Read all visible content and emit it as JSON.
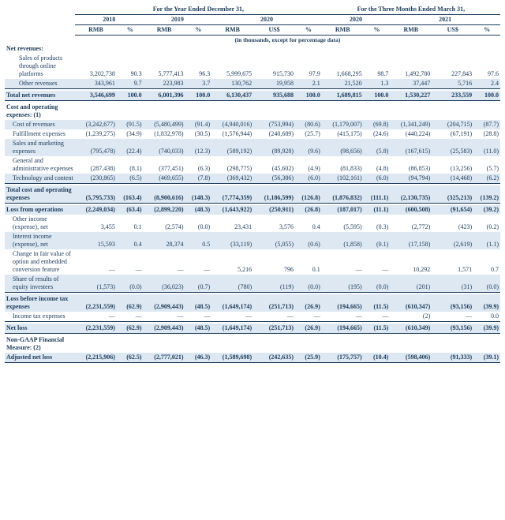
{
  "colors": {
    "fg": "#1a3a5a",
    "band": "#dde8f2",
    "bg": "#ffffff"
  },
  "headers": {
    "span_year": "For the Year Ended December 31,",
    "span_qtr": "For the Three Months Ended March 31,",
    "c1": "2018",
    "c2": "2019",
    "c3": "2020",
    "c4": "2020",
    "c5": "2021",
    "rmb": "RMB",
    "pct": "%",
    "uss": "US$",
    "units": "(in thousands, except for percentage data)"
  },
  "rows": [
    {
      "t": "h",
      "label": "Net revenues:"
    },
    {
      "t": "sub2",
      "label": "Sales of products through online platforms",
      "c": [
        "3,202,738",
        "90.3",
        "5,777,413",
        "96.3",
        "5,999,675",
        "915,730",
        "97.9",
        "1,668,295",
        "98.7",
        "1,492,780",
        "227,843",
        "97.6"
      ]
    },
    {
      "t": "sub2 band bb",
      "label": "Other revenues",
      "c": [
        "343,961",
        "9.7",
        "223,983",
        "3.7",
        "130,762",
        "19,958",
        "2.1",
        "21,520",
        "1.3",
        "37,447",
        "5,716",
        "2.4"
      ]
    },
    {
      "t": "sep"
    },
    {
      "t": "bold band bb",
      "label": "Total net revenues",
      "c": [
        "3,546,699",
        "100.0",
        "6,001,396",
        "100.0",
        "6,130,437",
        "935,688",
        "100.0",
        "1,689,815",
        "100.0",
        "1,530,227",
        "233,559",
        "100.0"
      ]
    },
    {
      "t": "sep"
    },
    {
      "t": "h",
      "label": "Cost and operating expenses: (1)"
    },
    {
      "t": "sub band",
      "label": "Cost of revenues",
      "c": [
        "(3,242,677)",
        "(91.5)",
        "(5,480,499)",
        "(91.4)",
        "(4,940,016)",
        "(753,994)",
        "(80.6)",
        "(1,179,007)",
        "(69.8)",
        "(1,341,249)",
        "(204,715)",
        "(87.7)"
      ]
    },
    {
      "t": "sub",
      "label": "Fulfillment expenses",
      "c": [
        "(1,239,275)",
        "(34.9)",
        "(1,832,978)",
        "(30.5)",
        "(1,576,944)",
        "(240,689)",
        "(25.7)",
        "(415,175)",
        "(24.6)",
        "(440,224)",
        "(67,191)",
        "(28.8)"
      ]
    },
    {
      "t": "sub band",
      "label": "Sales and marketing expenses",
      "c": [
        "(795,478)",
        "(22.4)",
        "(740,033)",
        "(12.3)",
        "(589,192)",
        "(89,928)",
        "(9.6)",
        "(98,656)",
        "(5.8)",
        "(167,615)",
        "(25,583)",
        "(11.0)"
      ]
    },
    {
      "t": "sub",
      "label": "General and administrative expenses",
      "c": [
        "(287,438)",
        "(8.1)",
        "(377,451)",
        "(6.3)",
        "(298,775)",
        "(45,602)",
        "(4.9)",
        "(81,833)",
        "(4.8)",
        "(86,853)",
        "(13,256)",
        "(5.7)"
      ]
    },
    {
      "t": "sub band bb",
      "label": "Technology and content",
      "c": [
        "(230,865)",
        "(6.5)",
        "(469,655)",
        "(7.8)",
        "(369,432)",
        "(56,386)",
        "(6.0)",
        "(102,161)",
        "(6.0)",
        "(94,794)",
        "(14,468)",
        "(6.2)"
      ]
    },
    {
      "t": "sep"
    },
    {
      "t": "bold band bb",
      "label": "Total cost and operating expenses",
      "c": [
        "(5,795,733)",
        "(163.4)",
        "(8,900,616)",
        "(148.3)",
        "(7,774,359)",
        "(1,186,599)",
        "(126.8)",
        "(1,876,832)",
        "(111.1)",
        "(2,130,735)",
        "(325,213)",
        "(139.2)"
      ]
    },
    {
      "t": "sep"
    },
    {
      "t": "bold band",
      "label": "Loss from operations",
      "c": [
        "(2,249,034)",
        "(63.4)",
        "(2,899,220)",
        "(48.3)",
        "(1,643,922)",
        "(250,911)",
        "(26.8)",
        "(187,017)",
        "(11.1)",
        "(600,508)",
        "(91,654)",
        "(39.2)"
      ]
    },
    {
      "t": "sub",
      "label": "Other income (expense), net",
      "c": [
        "3,455",
        "0.1",
        "(2,574)",
        "(0.0)",
        "23,431",
        "3,576",
        "0.4",
        "(5,595)",
        "(0.3)",
        "(2,772)",
        "(423)",
        "(0.2)"
      ]
    },
    {
      "t": "sub band",
      "label": "Interest income (expense), net",
      "c": [
        "15,593",
        "0.4",
        "28,374",
        "0.5",
        "(33,119)",
        "(5,055)",
        "(0.6)",
        "(1,858)",
        "(0.1)",
        "(17,158)",
        "(2,619)",
        "(1.1)"
      ]
    },
    {
      "t": "sub",
      "label": "Change in fair value of option and embedded conversion feature",
      "c": [
        "—",
        "—",
        "—",
        "—",
        "5,216",
        "796",
        "0.1",
        "—",
        "—",
        "10,292",
        "1,571",
        "0.7"
      ]
    },
    {
      "t": "sub band bb",
      "label": "Share of results of equity investees",
      "c": [
        "(1,573)",
        "(0.0)",
        "(36,023)",
        "(0.7)",
        "(780)",
        "(119)",
        "(0.0)",
        "(195)",
        "(0.0)",
        "(201)",
        "(31)",
        "(0.0)"
      ]
    },
    {
      "t": "sep"
    },
    {
      "t": "bold band",
      "label": "Loss before income tax expenses",
      "c": [
        "(2,231,559)",
        "(62.9)",
        "(2,909,443)",
        "(48.5)",
        "(1,649,174)",
        "(251,713)",
        "(26.9)",
        "(194,665)",
        "(11.5)",
        "(610,347)",
        "(93,156)",
        "(39.9)"
      ]
    },
    {
      "t": "sub bb",
      "label": "Income tax expenses",
      "c": [
        "—",
        "—",
        "—",
        "—",
        "—",
        "—",
        "—",
        "—",
        "—",
        "(2)",
        "—",
        "0.0"
      ]
    },
    {
      "t": "sep"
    },
    {
      "t": "bold band bb",
      "label": "Net loss",
      "c": [
        "(2,231,559)",
        "(62.9)",
        "(2,909,443)",
        "(48.5)",
        "(1,649,174)",
        "(251,713)",
        "(26.9)",
        "(194,665)",
        "(11.5)",
        "(610,349)",
        "(93,156)",
        "(39.9)"
      ]
    },
    {
      "t": "sep"
    },
    {
      "t": "h",
      "label": "Non-GAAP Financial Measure: (2)"
    },
    {
      "t": "bold band bb",
      "label": "Adjusted net loss",
      "c": [
        "(2,215,906)",
        "(62.5)",
        "(2,777,021)",
        "(46.3)",
        "(1,589,698)",
        "(242,635)",
        "(25.9)",
        "(175,757)",
        "(10.4)",
        "(598,406)",
        "(91,333)",
        "(39.1)"
      ]
    }
  ]
}
